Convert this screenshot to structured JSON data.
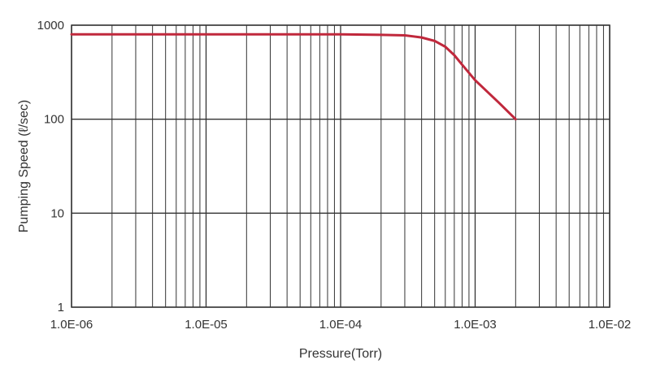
{
  "chart_data": {
    "type": "line",
    "title": "",
    "xlabel": "Pressure(Torr)",
    "ylabel": "Pumping Speed (ℓ/sec)",
    "xscale": "log",
    "yscale": "log",
    "xlim": [
      1e-06,
      0.01
    ],
    "ylim": [
      1,
      1000
    ],
    "x_tick_labels": [
      "1.0E-06",
      "1.0E-05",
      "1.0E-04",
      "1.0E-03",
      "1.0E-02"
    ],
    "y_tick_labels": [
      "1",
      "10",
      "100",
      "1000"
    ],
    "grid": true,
    "legend": "none",
    "colors": {
      "line": "#c0283c",
      "grid": "#333333",
      "text": "#333333"
    },
    "series": [
      {
        "x": [
          1e-06,
          1e-05,
          5e-05,
          0.0001,
          0.0002,
          0.0003,
          0.0004,
          0.0005,
          0.0006,
          0.0007,
          0.0008,
          0.001,
          0.0015,
          0.002
        ],
        "y": [
          800,
          800,
          800,
          800,
          790,
          780,
          740,
          680,
          590,
          480,
          380,
          260,
          150,
          100
        ]
      }
    ]
  }
}
